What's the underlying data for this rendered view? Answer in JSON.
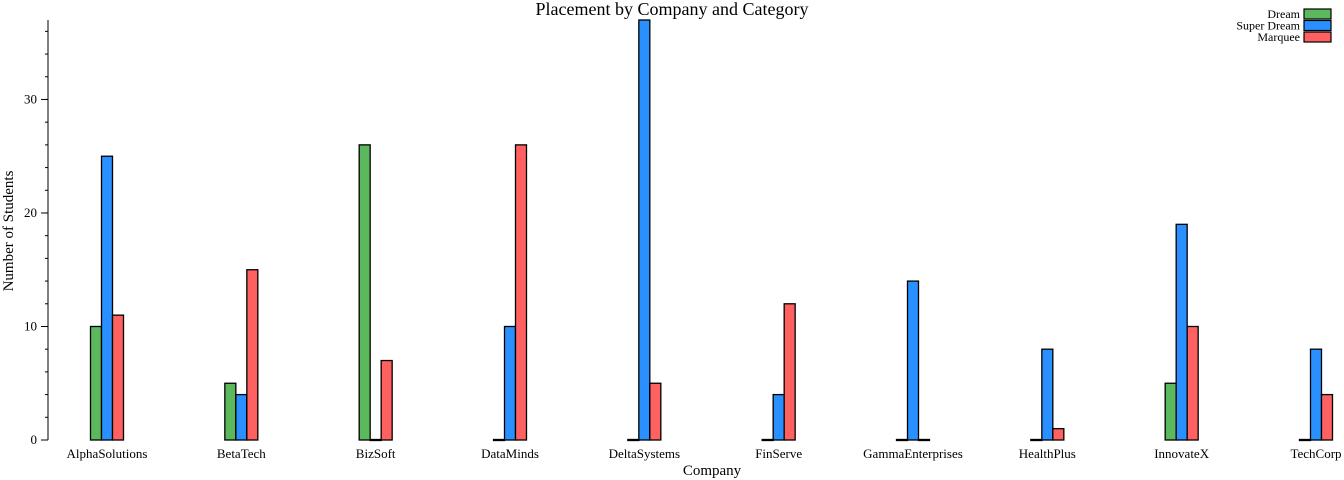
{
  "chart_data": {
    "type": "bar",
    "title": "Placement by Company and Category",
    "xlabel": "Company",
    "ylabel": "Number of Students",
    "categories": [
      "AlphaSolutions",
      "BetaTech",
      "BizSoft",
      "DataMinds",
      "DeltaSystems",
      "FinServe",
      "GammaEnterprises",
      "HealthPlus",
      "InnovateX",
      "TechCorp"
    ],
    "series": [
      {
        "name": "Dream",
        "color": "#5cb85c",
        "values": [
          10,
          5,
          26,
          0,
          0,
          0,
          0,
          0,
          5,
          0
        ]
      },
      {
        "name": "Super Dream",
        "color": "#2a90ff",
        "values": [
          25,
          4,
          0,
          10,
          37,
          4,
          14,
          8,
          19,
          8
        ]
      },
      {
        "name": "Marquee",
        "color": "#ff6060",
        "values": [
          11,
          15,
          7,
          26,
          5,
          12,
          0,
          1,
          10,
          4
        ]
      }
    ],
    "ylim": [
      0,
      37
    ],
    "yticks": [
      0,
      10,
      20,
      30
    ],
    "grid": false,
    "legend_position": "top-right"
  }
}
